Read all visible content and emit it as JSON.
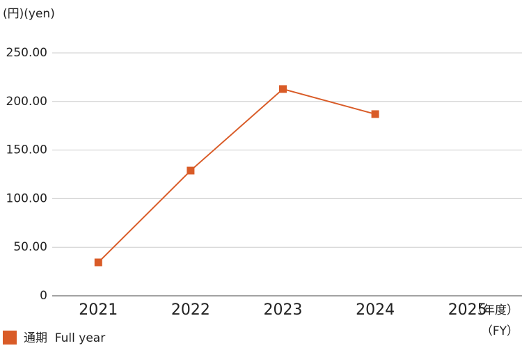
{
  "chart_data": {
    "type": "line",
    "y_unit": "(円)(yen)",
    "x_unit": [
      "（年度）",
      "（FY）"
    ],
    "categories": [
      "2021",
      "2022",
      "2023",
      "2024",
      "2025"
    ],
    "series": [
      {
        "name": "通期  Full year",
        "color": "#d95b27",
        "values": [
          34.4,
          128.9,
          212.8,
          187.0,
          null
        ]
      }
    ],
    "ylim": [
      0,
      250
    ],
    "yticks": [
      0,
      {
        "value": 50,
        "label": "50.00"
      },
      {
        "value": 100,
        "label": "100.00"
      },
      {
        "value": 150,
        "label": "150.00"
      },
      {
        "value": 200,
        "label": "200.00"
      },
      {
        "value": 250,
        "label": "250.00"
      }
    ],
    "grid": true
  }
}
